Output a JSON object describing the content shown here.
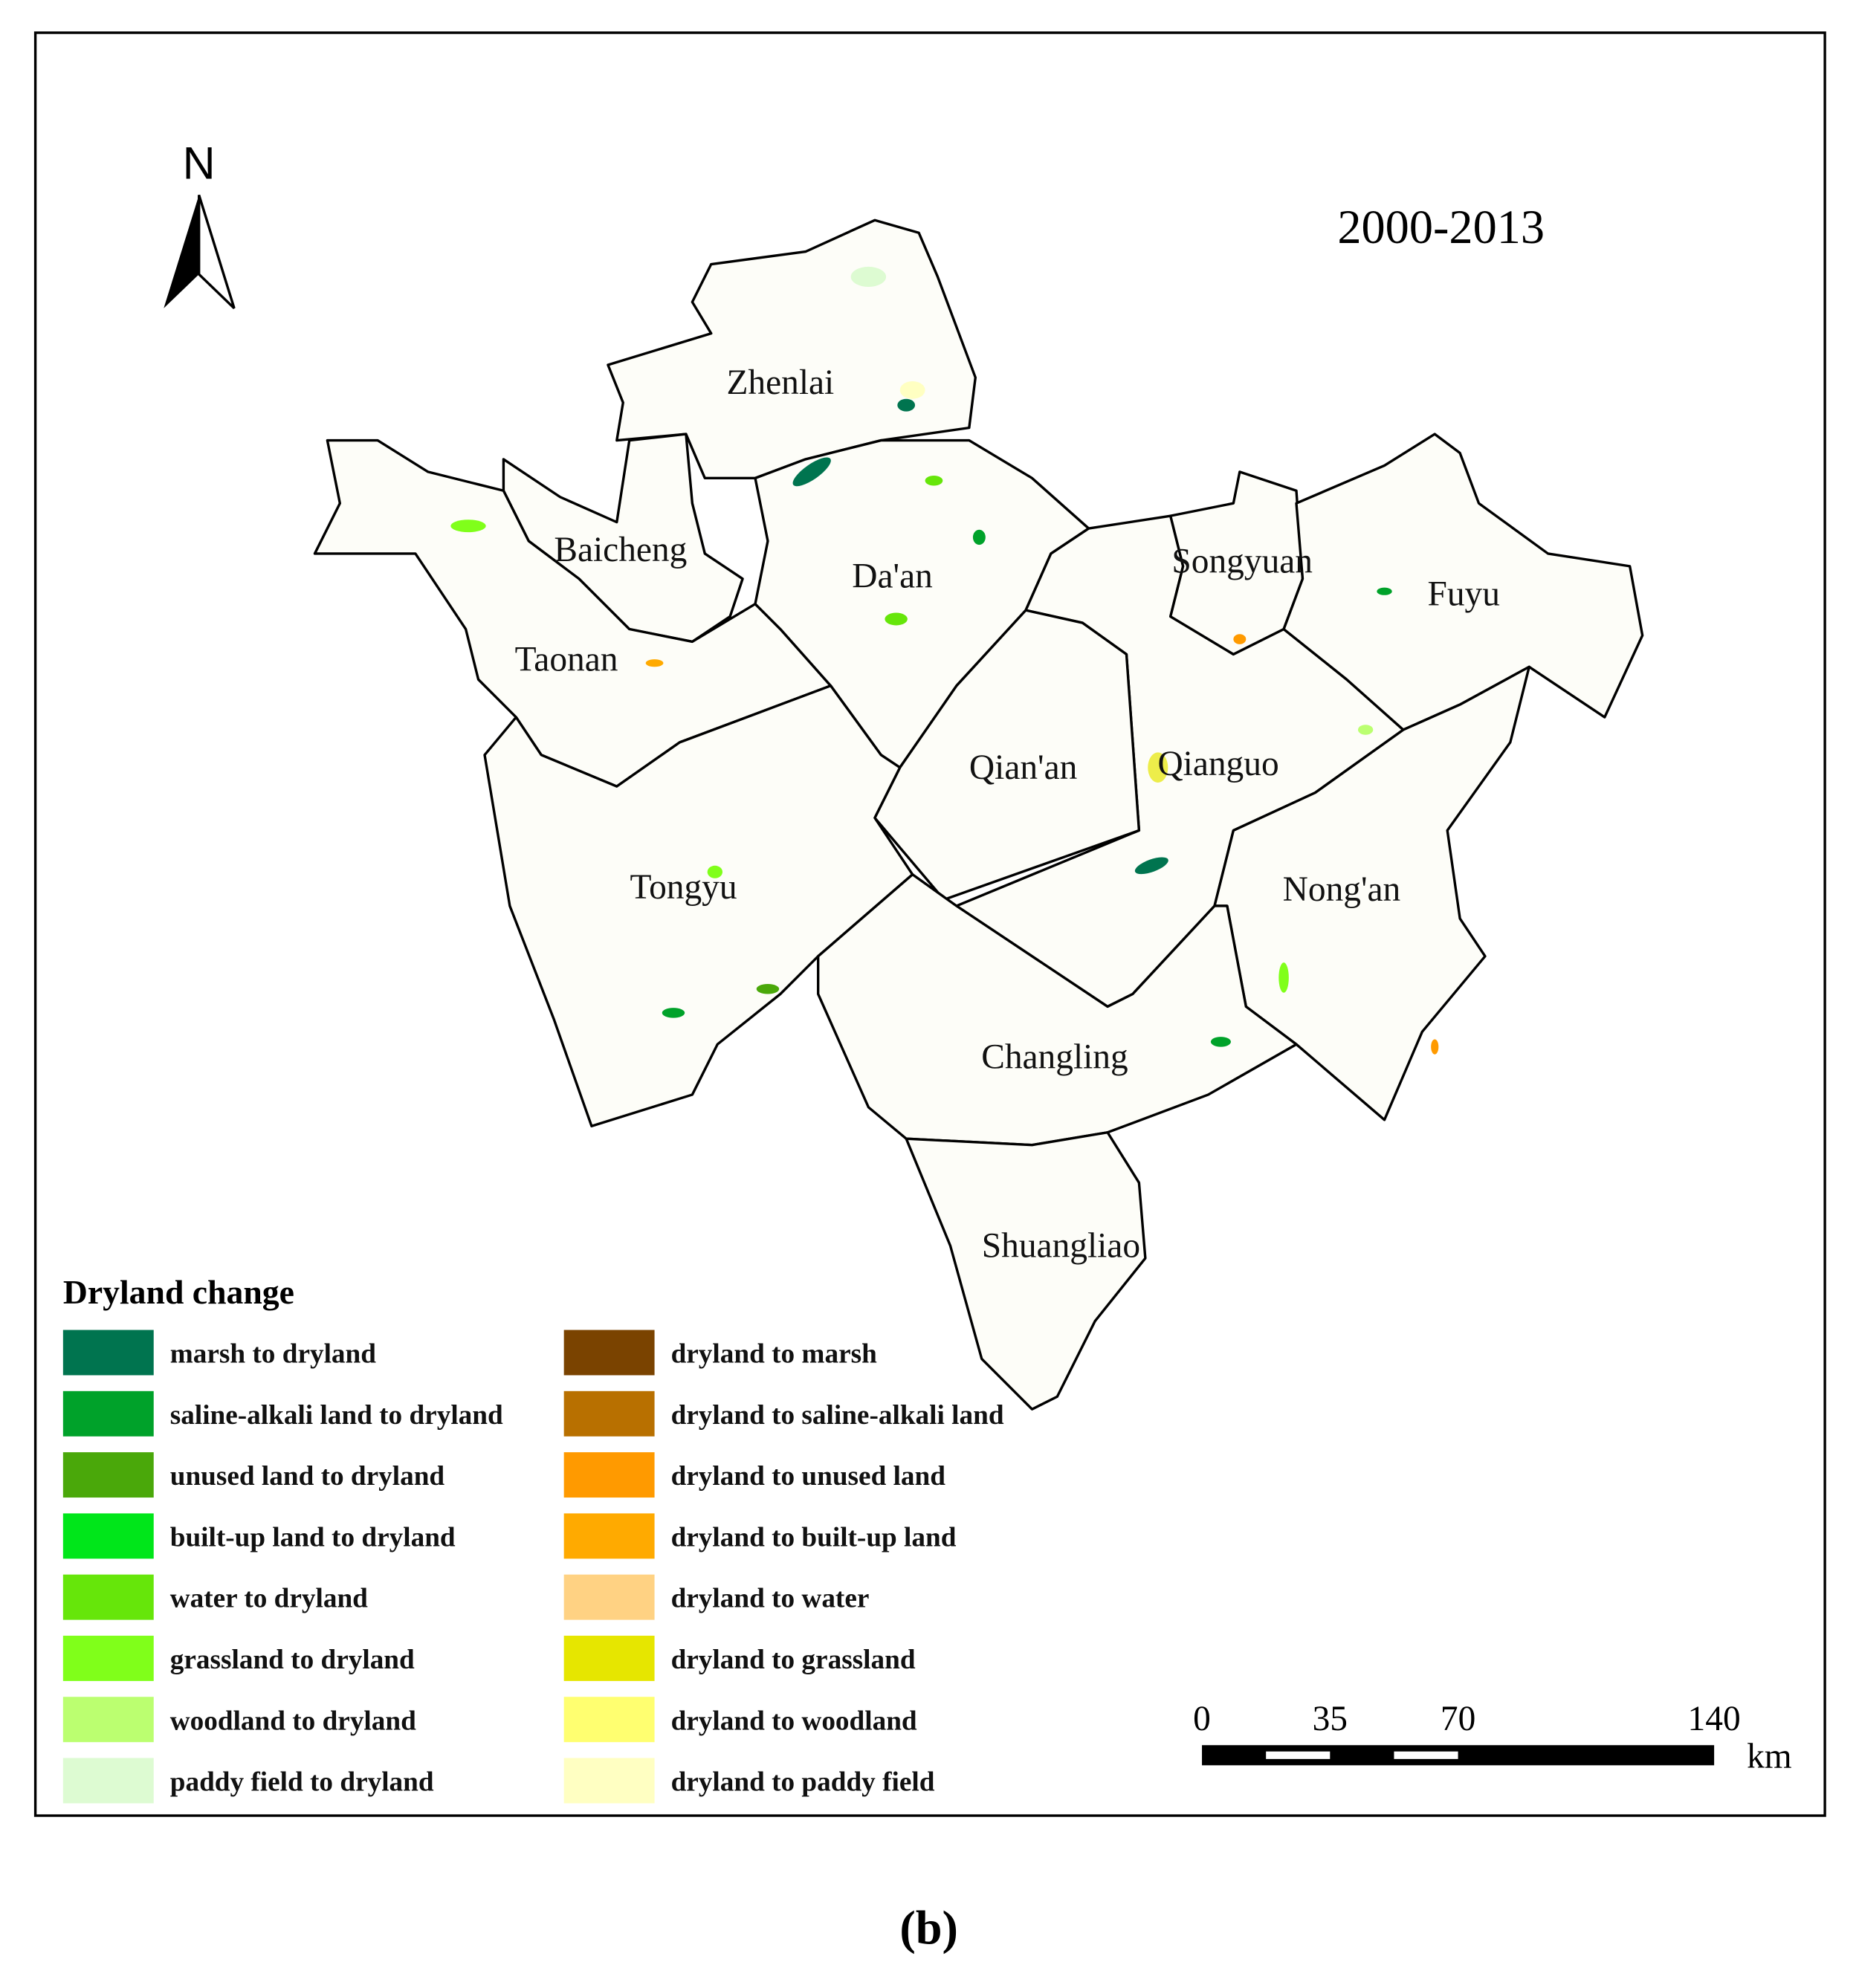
{
  "map": {
    "period": "2000-2013",
    "north_label": "N",
    "regions": [
      "Zhenlai",
      "Baicheng",
      "Da'an",
      "Taonan",
      "Songyuan",
      "Fuyu",
      "Qian'an",
      "Qianguo",
      "Tongyu",
      "Nong'an",
      "Changling",
      "Shuangliao"
    ],
    "legend": {
      "title": "Dryland change",
      "items": [
        {
          "label": "marsh to dryland",
          "color": "#00744f"
        },
        {
          "label": "saline-alkali land to dryland",
          "color": "#00a22a"
        },
        {
          "label": "unused land to dryland",
          "color": "#4aa80a"
        },
        {
          "label": "built-up land to dryland",
          "color": "#00e61a"
        },
        {
          "label": "water to dryland",
          "color": "#66e60a"
        },
        {
          "label": "grassland to dryland",
          "color": "#80ff1a"
        },
        {
          "label": "woodland to dryland",
          "color": "#bbff70"
        },
        {
          "label": "paddy field to dryland",
          "color": "#ddfbd2"
        },
        {
          "label": "dryland to marsh",
          "color": "#7a4300"
        },
        {
          "label": "dryland to saline-alkali land",
          "color": "#b87000"
        },
        {
          "label": "dryland to unused land",
          "color": "#ff9a00"
        },
        {
          "label": "dryland to built-up land",
          "color": "#ffaa00"
        },
        {
          "label": "dryland to water",
          "color": "#ffd283"
        },
        {
          "label": "dryland to grassland",
          "color": "#e6e600"
        },
        {
          "label": "dryland to woodland",
          "color": "#ffff70"
        },
        {
          "label": "dryland to paddy field",
          "color": "#ffffc2"
        }
      ]
    },
    "scale_bar": {
      "ticks": [
        0,
        35,
        70,
        140
      ],
      "unit": "km"
    }
  },
  "caption": "(b)"
}
